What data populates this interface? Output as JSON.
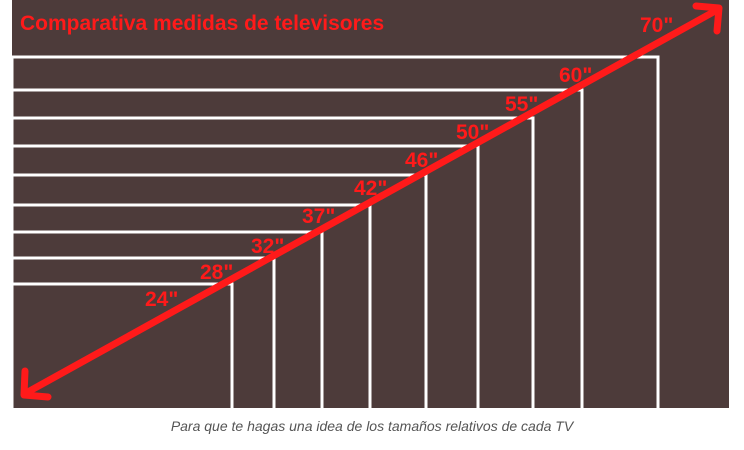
{
  "title": "Comparativa medidas de televisores",
  "caption": "Para que te hagas una idea de los tamaños relativos de cada TV",
  "colors": {
    "background": "#4d3b3a",
    "outline": "#ffffff",
    "accent": "#ff1a1a",
    "caption": "#555555"
  },
  "tv_sizes": [
    {
      "label": "24\"",
      "inches": 24
    },
    {
      "label": "28\"",
      "inches": 28
    },
    {
      "label": "32\"",
      "inches": 32
    },
    {
      "label": "37\"",
      "inches": 37
    },
    {
      "label": "42\"",
      "inches": 42
    },
    {
      "label": "46\"",
      "inches": 46
    },
    {
      "label": "50\"",
      "inches": 50
    },
    {
      "label": "55\"",
      "inches": 55
    },
    {
      "label": "60\"",
      "inches": 60
    },
    {
      "label": "70\"",
      "inches": 70
    }
  ],
  "arrow": "double-arrow"
}
